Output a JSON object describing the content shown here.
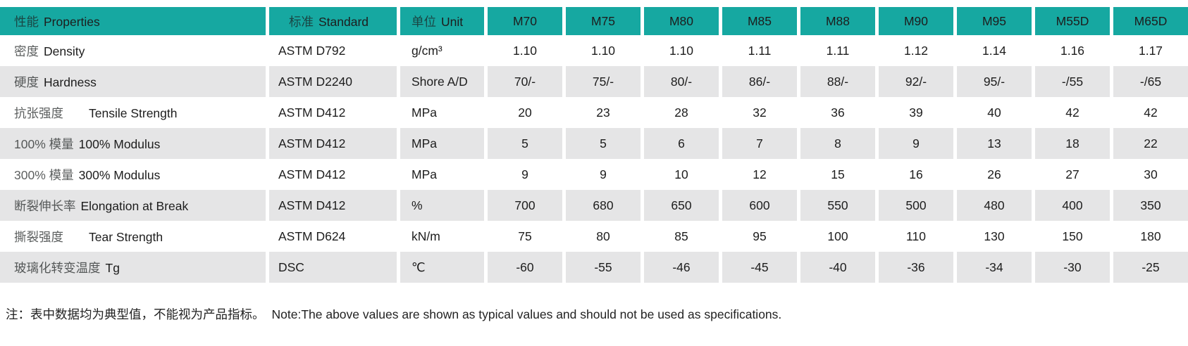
{
  "colors": {
    "header_bg": "#16a8a1",
    "alt_row_bg": "#e5e5e6",
    "row_bg": "#ffffff",
    "separator": "#ffffff",
    "text": "#1d1d1d"
  },
  "table": {
    "header": {
      "property": {
        "cn": "性能",
        "en": "Properties"
      },
      "standard": {
        "cn": "标准",
        "en": "Standard"
      },
      "unit": {
        "cn": "单位",
        "en": "Unit"
      },
      "grades": [
        "M70",
        "M75",
        "M80",
        "M85",
        "M88",
        "M90",
        "M95",
        "M55D",
        "M65D"
      ]
    },
    "rows": [
      {
        "property_cn": "密度",
        "property_en": "Density",
        "wide_gap": false,
        "standard": "ASTM D792",
        "unit": "g/cm³",
        "values": [
          "1.10",
          "1.10",
          "1.10",
          "1.11",
          "1.11",
          "1.12",
          "1.14",
          "1.16",
          "1.17"
        ]
      },
      {
        "property_cn": "硬度",
        "property_en": "Hardness",
        "wide_gap": false,
        "standard": "ASTM D2240",
        "unit": "Shore A/D",
        "values": [
          "70/-",
          "75/-",
          "80/-",
          "86/-",
          "88/-",
          "92/-",
          "95/-",
          "-/55",
          "-/65"
        ]
      },
      {
        "property_cn": "抗张强度",
        "property_en": "Tensile Strength",
        "wide_gap": true,
        "standard": "ASTM D412",
        "unit": "MPa",
        "values": [
          "20",
          "23",
          "28",
          "32",
          "36",
          "39",
          "40",
          "42",
          "42"
        ]
      },
      {
        "property_cn": "100% 模量",
        "property_en": "100% Modulus",
        "wide_gap": false,
        "standard": "ASTM D412",
        "unit": "MPa",
        "values": [
          "5",
          "5",
          "6",
          "7",
          "8",
          "9",
          "13",
          "18",
          "22"
        ]
      },
      {
        "property_cn": "300% 模量",
        "property_en": "300% Modulus",
        "wide_gap": false,
        "standard": "ASTM D412",
        "unit": "MPa",
        "values": [
          "9",
          "9",
          "10",
          "12",
          "15",
          "16",
          "26",
          "27",
          "30"
        ]
      },
      {
        "property_cn": "断裂伸长率",
        "property_en": "Elongation at Break",
        "wide_gap": false,
        "standard": "ASTM D412",
        "unit": "%",
        "values": [
          "700",
          "680",
          "650",
          "600",
          "550",
          "500",
          "480",
          "400",
          "350"
        ]
      },
      {
        "property_cn": "撕裂强度",
        "property_en": "Tear Strength",
        "wide_gap": true,
        "standard": "ASTM D624",
        "unit": "kN/m",
        "values": [
          "75",
          "80",
          "85",
          "95",
          "100",
          "110",
          "130",
          "150",
          "180"
        ]
      },
      {
        "property_cn": "玻璃化转变温度",
        "property_en": "Tg",
        "wide_gap": false,
        "standard": "DSC",
        "unit": "℃",
        "values": [
          "-60",
          "-55",
          "-46",
          "-45",
          "-40",
          "-36",
          "-34",
          "-30",
          "-25"
        ]
      }
    ]
  },
  "note": {
    "cn": "注：表中数据均为典型值，不能视为产品指标。",
    "en": "Note:The above values are shown as typical values and should not be used as specifications."
  }
}
